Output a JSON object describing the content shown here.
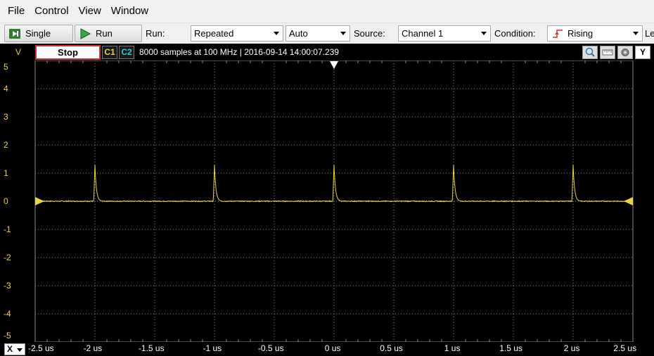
{
  "menu": [
    "File",
    "Control",
    "View",
    "Window"
  ],
  "toolbar": {
    "single_label": "Single",
    "run_label": "Run",
    "run_mode_label": "Run:",
    "run_mode_value": "Repeated",
    "trigger_mode_value": "Auto",
    "source_label": "Source:",
    "source_value": "Channel 1",
    "condition_label": "Condition:",
    "condition_value": "Rising",
    "level_label_partial": "Le"
  },
  "status": {
    "y_unit": "V",
    "stop_label": "Stop",
    "ch1_label": "C1",
    "ch2_label": "C2",
    "info_text": "8000 samples at 100 MHz | 2016-09-14 14:00:07.239",
    "y_button_label": "Y",
    "x_button_label": "X"
  },
  "colors": {
    "trace": "#e8d34a",
    "ch1": "#e8d34a",
    "ch2": "#38c8d8",
    "grid": "#8a8a8a",
    "stop_border": "#d03030"
  },
  "chart_data": {
    "type": "line",
    "title": "",
    "xlabel": "",
    "ylabel": "V",
    "xlim": [
      -2.5,
      2.5
    ],
    "ylim": [
      -5,
      5
    ],
    "x_unit": "us",
    "grid": true,
    "x_ticks": [
      "-2.5 us",
      "-2 us",
      "-1.5 us",
      "-1 us",
      "-0.5 us",
      "0 us",
      "0.5 us",
      "1 us",
      "1.5 us",
      "2 us",
      "2.5 us"
    ],
    "y_ticks": [
      "5",
      "4",
      "3",
      "2",
      "1",
      "0",
      "-1",
      "-2",
      "-3",
      "-4",
      "-5"
    ],
    "trigger_time_us": 0,
    "trigger_level_v": 0,
    "series": [
      {
        "pulse_times_us": [
          -2.0,
          -1.0,
          0.0,
          1.0,
          2.0
        ],
        "pulse_peak_v": 1.3,
        "baseline_v": 0
      }
    ]
  }
}
